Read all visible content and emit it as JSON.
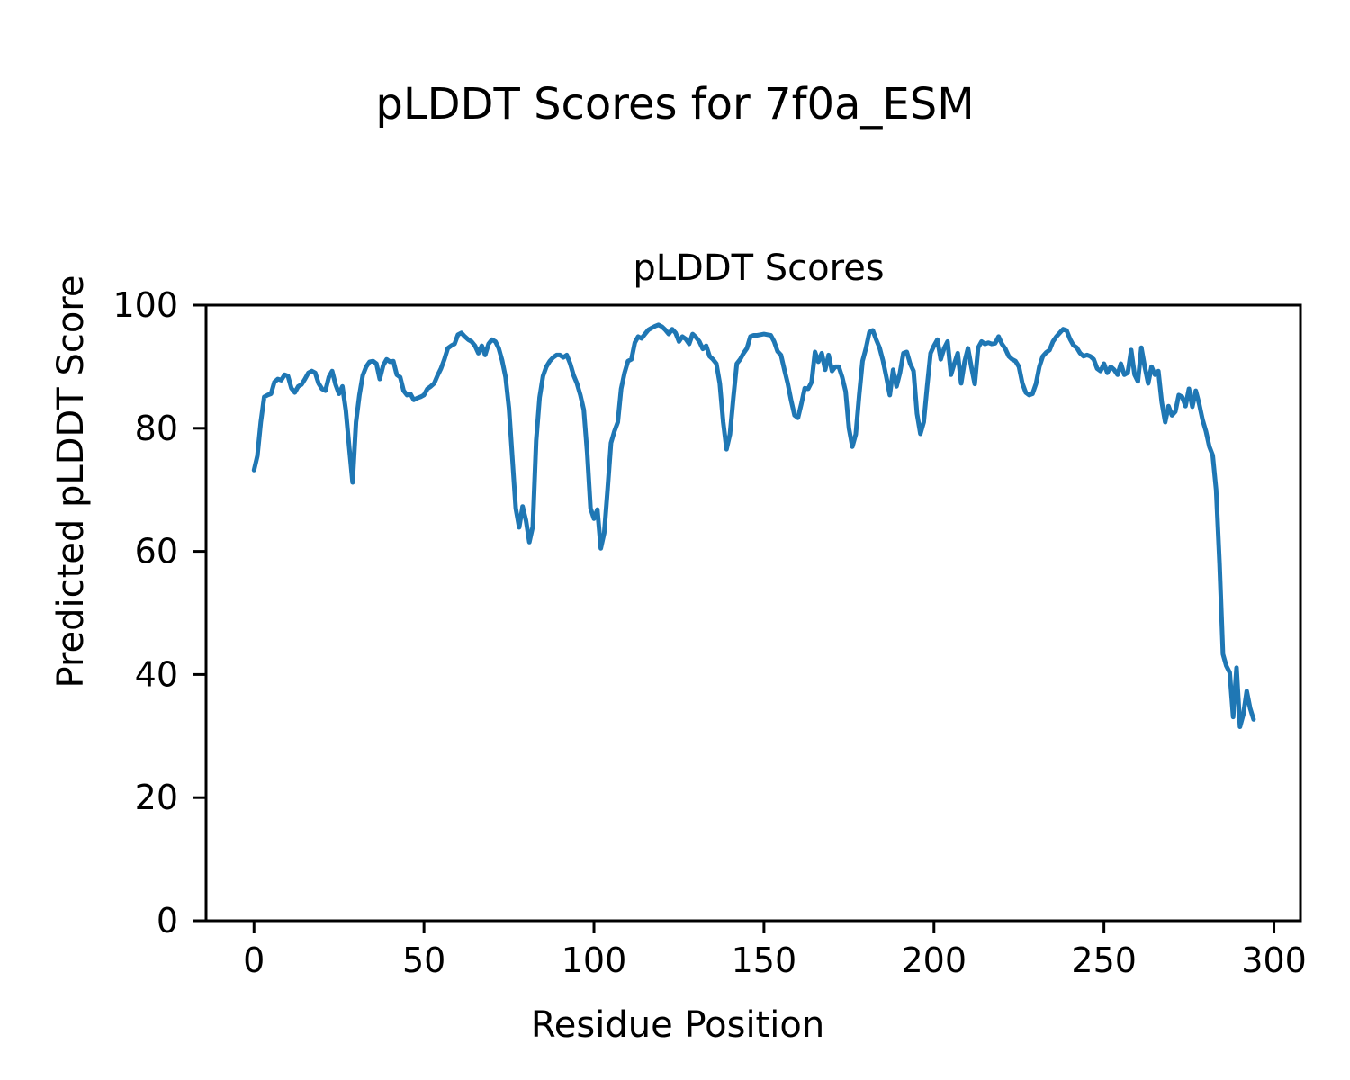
{
  "figure": {
    "background_color": "#ffffff",
    "text_color": "#000000",
    "spine_color": "#000000"
  },
  "chart_data": {
    "type": "line",
    "suptitle": "pLDDT Scores for 7f0a_ESM",
    "title": "pLDDT Scores",
    "xlabel": "Residue Position",
    "ylabel": "Predicted pLDDT Score",
    "xlim": [
      -14.1,
      307.8
    ],
    "ylim": [
      0,
      100
    ],
    "x_ticks": [
      0,
      50,
      100,
      150,
      200,
      250,
      300
    ],
    "y_ticks": [
      0,
      20,
      40,
      60,
      80,
      100
    ],
    "grid": false,
    "legend": "none",
    "series": [
      {
        "name": "pLDDT",
        "color": "#1f77b4",
        "x_start": 0,
        "x_step": 1,
        "values": [
          73.2,
          75.5,
          81.0,
          85.1,
          85.4,
          85.6,
          87.5,
          88.0,
          87.8,
          88.7,
          88.5,
          86.5,
          85.8,
          86.8,
          87.1,
          88.0,
          89.0,
          89.3,
          89.0,
          87.3,
          86.4,
          86.1,
          88.3,
          89.3,
          87.1,
          85.6,
          86.8,
          82.9,
          77.0,
          71.2,
          81.0,
          85.4,
          88.6,
          90.0,
          90.8,
          90.9,
          90.5,
          88.0,
          90.2,
          91.2,
          90.8,
          90.9,
          88.7,
          88.3,
          86.1,
          85.4,
          85.6,
          84.6,
          84.9,
          85.1,
          85.4,
          86.4,
          86.8,
          87.3,
          88.6,
          89.7,
          91.2,
          93.0,
          93.4,
          93.7,
          95.2,
          95.5,
          94.9,
          94.4,
          94.1,
          93.4,
          92.2,
          93.4,
          91.9,
          93.7,
          94.4,
          94.1,
          93.0,
          91.0,
          88.3,
          83.2,
          75.0,
          67.0,
          63.9,
          67.3,
          65.0,
          61.5,
          64.0,
          78.0,
          85.0,
          88.5,
          90.0,
          90.9,
          91.5,
          91.9,
          91.9,
          91.5,
          91.9,
          90.5,
          88.6,
          87.3,
          85.4,
          83.0,
          76.0,
          67.0,
          65.3,
          66.8,
          60.5,
          63.0,
          70.0,
          77.6,
          79.5,
          81.0,
          86.4,
          89.0,
          90.9,
          91.2,
          93.9,
          94.9,
          94.6,
          95.3,
          96.0,
          96.3,
          96.6,
          96.8,
          96.5,
          96.0,
          95.3,
          96.1,
          95.5,
          94.1,
          94.9,
          94.5,
          93.7,
          95.3,
          94.8,
          94.1,
          92.9,
          93.4,
          91.7,
          91.2,
          90.5,
          87.3,
          81.0,
          76.6,
          79.0,
          85.0,
          90.5,
          91.2,
          92.2,
          93.0,
          94.9,
          95.1,
          95.1,
          95.2,
          95.3,
          95.2,
          95.1,
          94.1,
          92.5,
          91.9,
          89.5,
          87.3,
          84.5,
          82.1,
          81.7,
          84.0,
          86.5,
          86.4,
          87.5,
          92.4,
          90.8,
          92.2,
          89.5,
          91.9,
          89.3,
          90.0,
          90.0,
          88.3,
          86.0,
          80.0,
          77.0,
          79.0,
          85.4,
          90.9,
          93.0,
          95.6,
          95.9,
          94.4,
          93.1,
          91.0,
          88.3,
          85.4,
          89.5,
          86.8,
          89.0,
          92.2,
          92.4,
          90.5,
          89.3,
          82.4,
          79.1,
          81.0,
          86.8,
          92.2,
          93.4,
          94.4,
          91.2,
          93.0,
          94.1,
          88.7,
          90.5,
          92.2,
          87.3,
          90.8,
          93.0,
          90.0,
          87.2,
          93.1,
          94.1,
          93.7,
          93.9,
          93.7,
          93.8,
          94.9,
          93.7,
          92.9,
          91.7,
          91.2,
          90.9,
          90.0,
          87.3,
          85.8,
          85.4,
          85.6,
          87.2,
          90.0,
          91.7,
          92.3,
          92.7,
          94.1,
          94.9,
          95.5,
          96.1,
          95.9,
          94.5,
          93.5,
          93.1,
          92.2,
          91.7,
          91.9,
          91.7,
          91.2,
          89.7,
          89.3,
          90.5,
          89.0,
          90.0,
          89.5,
          88.7,
          90.5,
          88.7,
          89.0,
          92.7,
          88.7,
          87.6,
          93.1,
          90.0,
          87.3,
          90.0,
          88.7,
          89.3,
          84.2,
          81.0,
          83.6,
          82.1,
          82.7,
          85.4,
          85.1,
          83.6,
          86.4,
          83.5,
          86.1,
          84.0,
          81.4,
          79.5,
          77.0,
          75.6,
          70.0,
          58.0,
          43.3,
          41.4,
          40.3,
          33.1,
          41.1,
          31.5,
          33.5,
          37.3,
          34.5,
          32.7
        ]
      }
    ]
  }
}
